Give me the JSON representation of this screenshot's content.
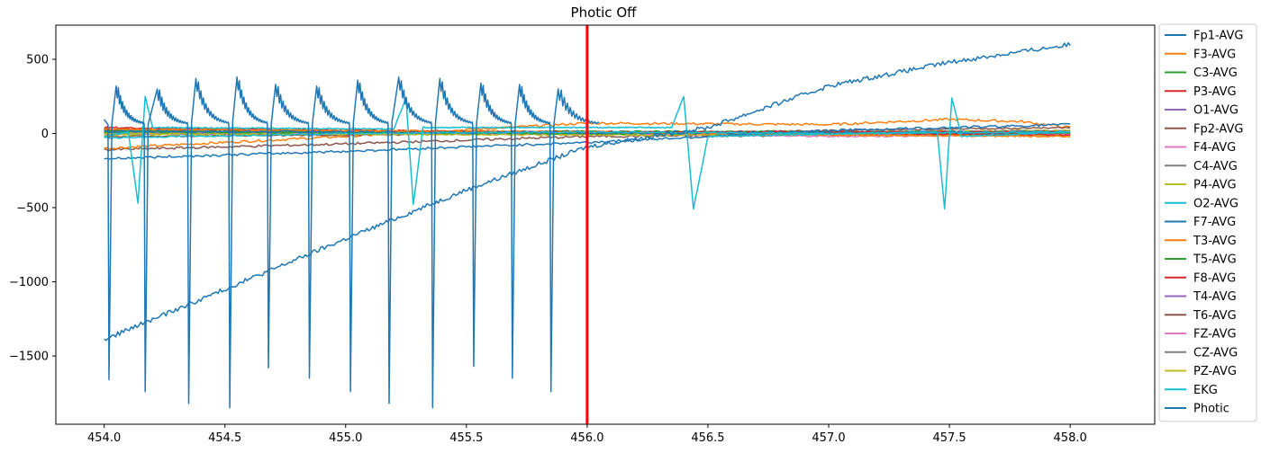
{
  "chart_data": {
    "type": "line",
    "title": "Photic Off",
    "xlabel": "",
    "ylabel": "",
    "xlim": [
      453.8,
      458.35
    ],
    "ylim": [
      -1960,
      730
    ],
    "x_ticks": [
      454.0,
      454.5,
      455.0,
      455.5,
      456.0,
      456.5,
      457.0,
      457.5,
      458.0
    ],
    "x_tick_labels": [
      "454.0",
      "454.5",
      "455.0",
      "455.5",
      "456.0",
      "456.5",
      "457.0",
      "457.5",
      "458.0"
    ],
    "y_ticks": [
      500,
      0,
      -500,
      -1000,
      -1500
    ],
    "y_tick_labels": [
      "500",
      "0",
      "−500",
      "−1000",
      "−1500"
    ],
    "grid": false,
    "legend_position": "outside-right",
    "marker_line": {
      "x": 456.0,
      "color": "#ff0000"
    },
    "series": [
      {
        "name": "Fp1-AVG",
        "color": "#1f77b4",
        "points": [
          [
            454.0,
            15
          ],
          [
            455.0,
            10
          ],
          [
            456.0,
            5
          ],
          [
            457.0,
            5
          ],
          [
            458.0,
            10
          ]
        ]
      },
      {
        "name": "F3-AVG",
        "color": "#ff7f0e",
        "points": [
          [
            454.0,
            -100
          ],
          [
            455.0,
            -20
          ],
          [
            456.0,
            70
          ],
          [
            457.0,
            60
          ],
          [
            457.5,
            95
          ],
          [
            457.8,
            80
          ],
          [
            458.0,
            40
          ]
        ]
      },
      {
        "name": "C3-AVG",
        "color": "#2ca02c",
        "points": [
          [
            454.0,
            20
          ],
          [
            455.0,
            10
          ],
          [
            456.0,
            15
          ],
          [
            457.0,
            10
          ],
          [
            458.0,
            5
          ]
        ]
      },
      {
        "name": "P3-AVG",
        "color": "#d62728",
        "points": [
          [
            454.0,
            40
          ],
          [
            455.0,
            20
          ],
          [
            456.0,
            10
          ],
          [
            457.0,
            10
          ],
          [
            458.0,
            10
          ]
        ]
      },
      {
        "name": "O1-AVG",
        "color": "#9467bd",
        "points": [
          [
            454.0,
            20
          ],
          [
            455.0,
            10
          ],
          [
            456.0,
            5
          ],
          [
            457.0,
            0
          ],
          [
            458.0,
            5
          ]
        ]
      },
      {
        "name": "Fp2-AVG",
        "color": "#8c564b",
        "points": [
          [
            454.0,
            -110
          ],
          [
            455.0,
            -70
          ],
          [
            456.0,
            -20
          ],
          [
            457.0,
            -10
          ],
          [
            458.0,
            0
          ]
        ]
      },
      {
        "name": "F4-AVG",
        "color": "#e377c2",
        "points": [
          [
            454.0,
            10
          ],
          [
            455.0,
            5
          ],
          [
            456.0,
            0
          ],
          [
            457.0,
            -20
          ],
          [
            458.0,
            -10
          ]
        ]
      },
      {
        "name": "C4-AVG",
        "color": "#7f7f7f",
        "points": [
          [
            454.0,
            5
          ],
          [
            455.0,
            0
          ],
          [
            456.0,
            5
          ],
          [
            457.0,
            10
          ],
          [
            458.0,
            20
          ]
        ]
      },
      {
        "name": "P4-AVG",
        "color": "#bcbd22",
        "points": [
          [
            454.0,
            -10
          ],
          [
            455.0,
            0
          ],
          [
            456.0,
            5
          ],
          [
            457.0,
            10
          ],
          [
            458.0,
            20
          ]
        ]
      },
      {
        "name": "O2-AVG",
        "color": "#17becf",
        "points": [
          [
            454.0,
            -30
          ],
          [
            455.0,
            0
          ],
          [
            456.0,
            10
          ],
          [
            457.0,
            0
          ],
          [
            458.0,
            10
          ]
        ]
      },
      {
        "name": "F7-AVG",
        "color": "#1f77b4",
        "points": [
          [
            454.0,
            -170
          ],
          [
            455.0,
            -120
          ],
          [
            456.0,
            -60
          ],
          [
            457.0,
            20
          ],
          [
            458.0,
            60
          ]
        ]
      },
      {
        "name": "T3-AVG",
        "color": "#ff7f0e",
        "points": [
          [
            454.0,
            30
          ],
          [
            455.0,
            20
          ],
          [
            456.0,
            10
          ],
          [
            457.0,
            -10
          ],
          [
            458.0,
            -20
          ]
        ]
      },
      {
        "name": "T5-AVG",
        "color": "#2ca02c",
        "points": [
          [
            454.0,
            10
          ],
          [
            455.0,
            5
          ],
          [
            456.0,
            0
          ],
          [
            457.0,
            0
          ],
          [
            458.0,
            5
          ]
        ]
      },
      {
        "name": "F8-AVG",
        "color": "#d62728",
        "points": [
          [
            454.0,
            30
          ],
          [
            455.0,
            20
          ],
          [
            456.0,
            10
          ],
          [
            457.0,
            0
          ],
          [
            458.0,
            -10
          ]
        ]
      },
      {
        "name": "T4-AVG",
        "color": "#9467bd",
        "points": [
          [
            454.0,
            0
          ],
          [
            455.0,
            -5
          ],
          [
            456.0,
            0
          ],
          [
            457.0,
            5
          ],
          [
            458.0,
            0
          ]
        ]
      },
      {
        "name": "T6-AVG",
        "color": "#8c564b",
        "points": [
          [
            454.0,
            -20
          ],
          [
            455.0,
            -10
          ],
          [
            456.0,
            0
          ],
          [
            457.0,
            20
          ],
          [
            458.0,
            40
          ]
        ]
      },
      {
        "name": "FZ-AVG",
        "color": "#e377c2",
        "points": [
          [
            454.0,
            10
          ],
          [
            455.0,
            5
          ],
          [
            456.0,
            0
          ],
          [
            457.0,
            -10
          ],
          [
            458.0,
            -5
          ]
        ]
      },
      {
        "name": "CZ-AVG",
        "color": "#7f7f7f",
        "points": [
          [
            454.0,
            15
          ],
          [
            455.0,
            10
          ],
          [
            456.0,
            5
          ],
          [
            457.0,
            10
          ],
          [
            458.0,
            15
          ]
        ]
      },
      {
        "name": "PZ-AVG",
        "color": "#bcbd22",
        "points": [
          [
            454.0,
            0
          ],
          [
            455.0,
            -5
          ],
          [
            456.0,
            -10
          ],
          [
            457.0,
            -10
          ],
          [
            458.0,
            -15
          ]
        ]
      },
      {
        "name": "EKG",
        "color": "#17becf",
        "points": [
          [
            454.0,
            -20
          ],
          [
            454.1,
            10
          ],
          [
            454.14,
            -470
          ],
          [
            454.17,
            250
          ],
          [
            454.2,
            40
          ],
          [
            455.2,
            30
          ],
          [
            455.25,
            240
          ],
          [
            455.28,
            -480
          ],
          [
            455.32,
            40
          ],
          [
            456.35,
            40
          ],
          [
            456.4,
            250
          ],
          [
            456.44,
            -510
          ],
          [
            456.5,
            -20
          ],
          [
            457.45,
            10
          ],
          [
            457.48,
            -510
          ],
          [
            457.51,
            240
          ],
          [
            457.55,
            -20
          ],
          [
            458.0,
            10
          ]
        ]
      },
      {
        "name": "Photic",
        "color": "#1f77b4",
        "points": [
          [
            454.0,
            -1390
          ],
          [
            455.0,
            -710
          ],
          [
            455.5,
            -380
          ],
          [
            456.0,
            -90
          ],
          [
            456.5,
            40
          ],
          [
            457.0,
            320
          ],
          [
            457.5,
            480
          ],
          [
            458.0,
            600
          ]
        ]
      }
    ],
    "photic_pulses": {
      "start_x": 454.0,
      "start_offset": 95,
      "baseline": [
        [
          454.0,
          0
        ],
        [
          456.0,
          -5
        ]
      ],
      "spikes": [
        [
          454.02,
          -1660
        ],
        [
          454.17,
          -1740
        ],
        [
          454.35,
          -1820
        ],
        [
          454.52,
          -1850
        ],
        [
          454.68,
          -1580
        ],
        [
          454.85,
          -1650
        ],
        [
          455.02,
          -1740
        ],
        [
          455.18,
          -1820
        ],
        [
          455.36,
          -1850
        ],
        [
          455.53,
          -1570
        ],
        [
          455.69,
          -1650
        ],
        [
          455.85,
          -1740
        ]
      ],
      "peaks": [
        [
          454.05,
          320
        ],
        [
          454.22,
          300
        ],
        [
          454.38,
          370
        ],
        [
          454.55,
          380
        ],
        [
          454.71,
          330
        ],
        [
          454.88,
          320
        ],
        [
          455.05,
          360
        ],
        [
          455.22,
          380
        ],
        [
          455.39,
          370
        ],
        [
          455.56,
          340
        ],
        [
          455.72,
          330
        ],
        [
          455.88,
          300
        ]
      ],
      "decay_end": [
        456.05,
        75
      ]
    }
  }
}
